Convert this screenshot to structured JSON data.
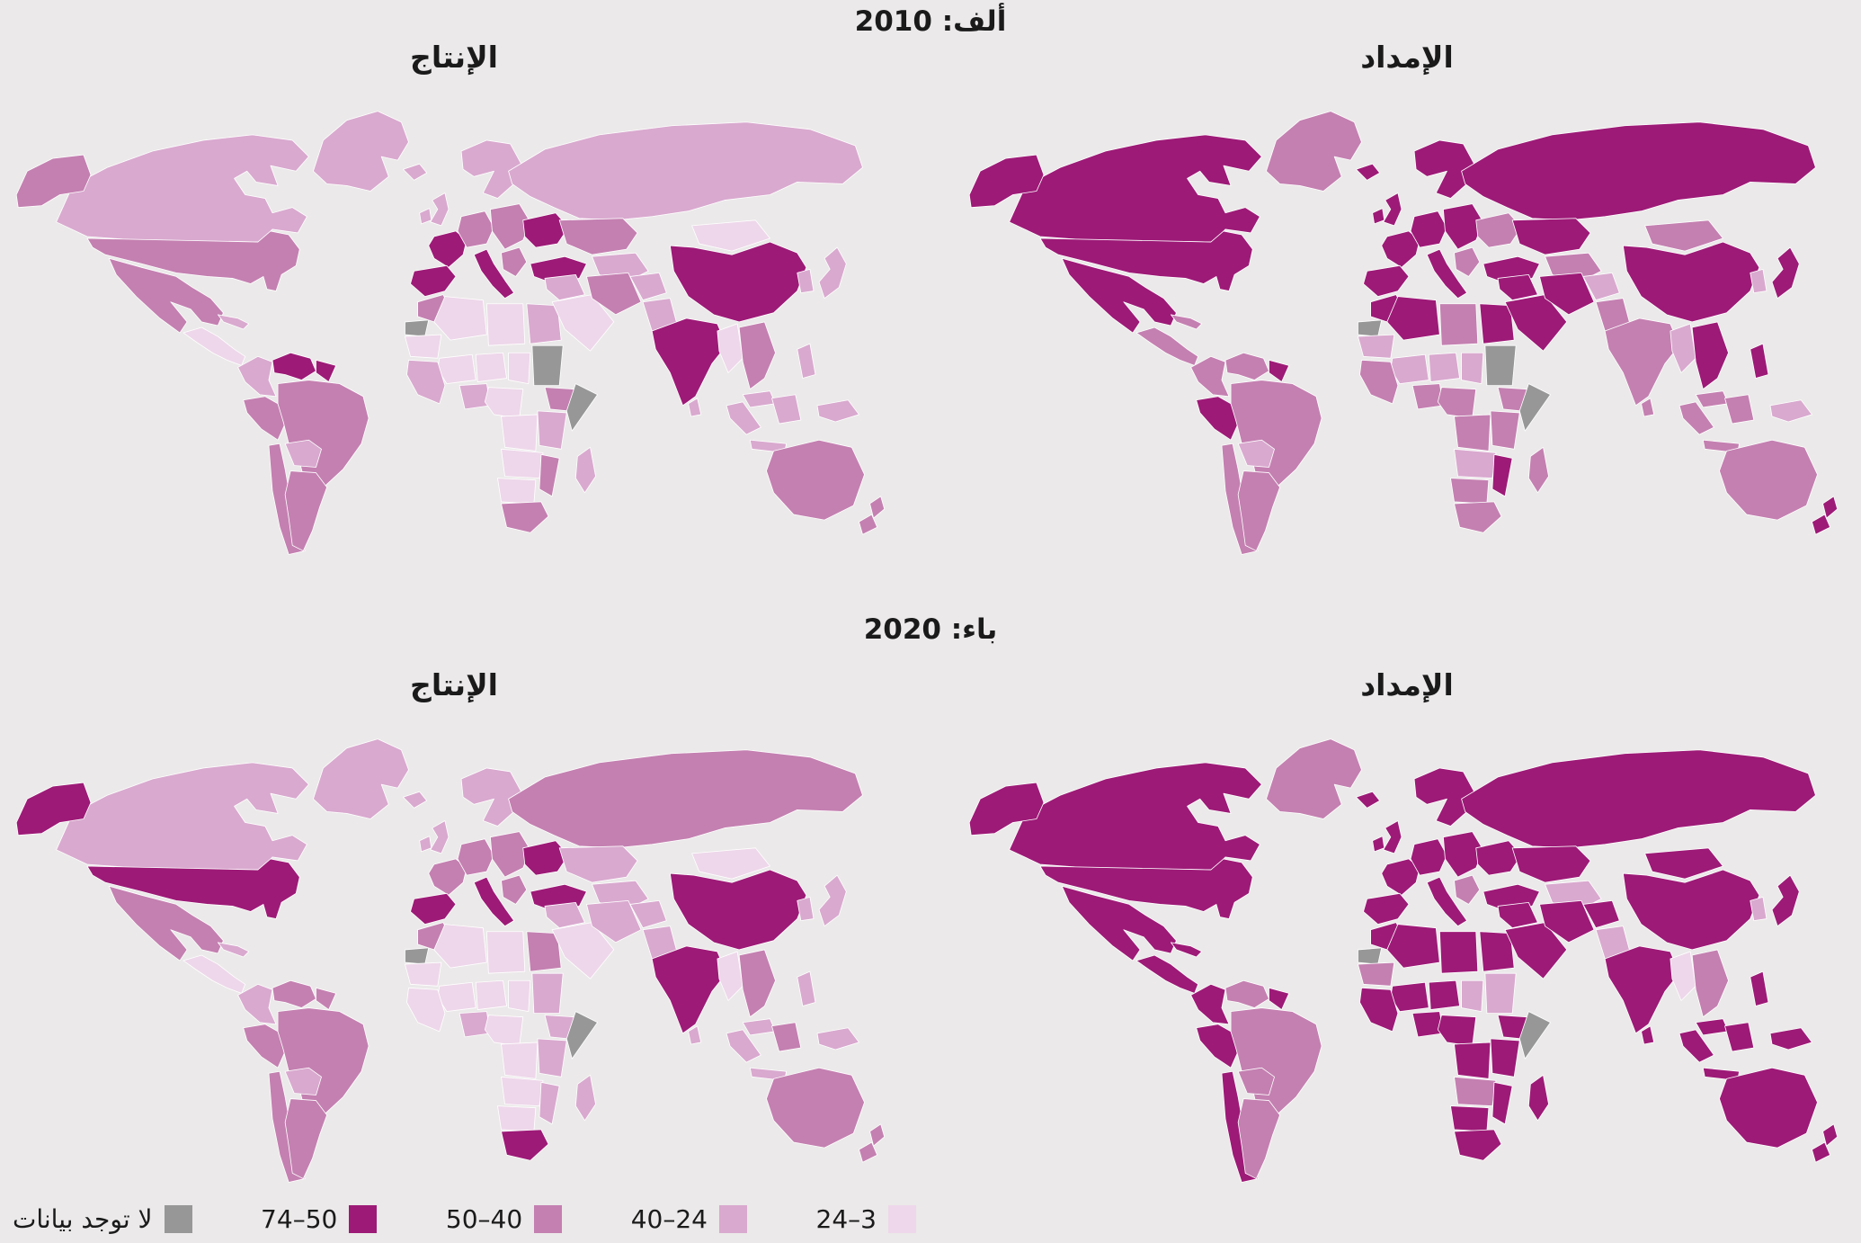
{
  "figure": {
    "panels": [
      {
        "id": "a",
        "header": "ألف: 2010",
        "maps": [
          {
            "title": "الإنتاج",
            "key": "prod2010"
          },
          {
            "title": "الإمداد",
            "key": "sup2010"
          }
        ]
      },
      {
        "id": "b",
        "header": "باء: 2020",
        "maps": [
          {
            "title": "الإنتاج",
            "key": "prod2020"
          },
          {
            "title": "الإمداد",
            "key": "sup2020"
          }
        ]
      }
    ]
  },
  "legend": {
    "items": [
      {
        "key": "c1",
        "label": "3–24"
      },
      {
        "key": "c2",
        "label": "24–40"
      },
      {
        "key": "c3",
        "label": "40–50"
      },
      {
        "key": "c4",
        "label": "50–74"
      },
      {
        "key": "nd",
        "label": "لا توجد بيانات"
      }
    ],
    "palette": {
      "c1": "#eed7ea",
      "c2": "#d9a9cf",
      "c3": "#c480b1",
      "c4": "#9d1a77",
      "nd": "#979797"
    }
  },
  "colors": {
    "background": "#ebe9e9",
    "border": "#ffffff",
    "text": "#1a1a1a"
  },
  "map_data": {
    "prod2010": {
      "greenland": "c2",
      "canada": "c2",
      "alaska": "c3",
      "usa": "c3",
      "mexico": "c3",
      "camerica": "c1",
      "cuba": "c2",
      "colombia": "c2",
      "venezuela": "c4",
      "guyanas": "c4",
      "peru": "c3",
      "brazil": "c3",
      "bolivia": "c2",
      "chile": "c3",
      "argentina": "c3",
      "iceland": "c2",
      "uk": "c2",
      "scandinavia": "c2",
      "france": "c4",
      "iberia": "c4",
      "centraleurope": "c3",
      "italy": "c4",
      "easteurope": "c3",
      "ukraine": "c4",
      "balkans": "c3",
      "turkey": "c4",
      "morocco": "c3",
      "wsahara": "nd",
      "mauritania": "c1",
      "algeria": "c1",
      "libya": "c1",
      "egypt": "c2",
      "mali": "c1",
      "niger": "c1",
      "chad": "c1",
      "sudan": "nd",
      "wafrica": "c2",
      "nigeria": "c2",
      "cafrica": "c1",
      "ethiopia": "c3",
      "somalia": "nd",
      "eafrica": "c2",
      "drc": "c1",
      "angola_zambia": "c1",
      "mozambique": "c3",
      "namibia_botswana": "c1",
      "southafrica": "c3",
      "madagascar": "c2",
      "russia": "c2",
      "kazakhstan": "c3",
      "centralasia": "c2",
      "iraq_levant": "c2",
      "saudi": "c1",
      "iran": "c3",
      "afghanistan": "c2",
      "pakistan": "c2",
      "india": "c4",
      "srilanka": "c2",
      "china": "c4",
      "mongolia": "c1",
      "korea": "c2",
      "japan": "c2",
      "myanmar": "c1",
      "indochina": "c3",
      "malaysia": "c2",
      "sumatra": "c2",
      "java": "c2",
      "borneo": "c2",
      "philippines": "c2",
      "png": "c2",
      "australia": "c3",
      "newzealand": "c3"
    },
    "sup2010": {
      "greenland": "c3",
      "canada": "c4",
      "alaska": "c4",
      "usa": "c4",
      "mexico": "c4",
      "camerica": "c3",
      "cuba": "c3",
      "colombia": "c3",
      "venezuela": "c3",
      "guyanas": "c4",
      "peru": "c4",
      "brazil": "c3",
      "bolivia": "c2",
      "chile": "c3",
      "argentina": "c3",
      "iceland": "c4",
      "uk": "c4",
      "scandinavia": "c4",
      "france": "c4",
      "iberia": "c4",
      "centraleurope": "c4",
      "italy": "c4",
      "easteurope": "c4",
      "ukraine": "c3",
      "balkans": "c3",
      "turkey": "c4",
      "morocco": "c4",
      "wsahara": "nd",
      "mauritania": "c2",
      "algeria": "c4",
      "libya": "c3",
      "egypt": "c4",
      "mali": "c2",
      "niger": "c2",
      "chad": "c2",
      "sudan": "nd",
      "wafrica": "c3",
      "nigeria": "c3",
      "cafrica": "c3",
      "ethiopia": "c3",
      "somalia": "nd",
      "eafrica": "c3",
      "drc": "c3",
      "angola_zambia": "c2",
      "mozambique": "c4",
      "namibia_botswana": "c3",
      "southafrica": "c3",
      "madagascar": "c3",
      "russia": "c4",
      "kazakhstan": "c4",
      "centralasia": "c3",
      "iraq_levant": "c4",
      "saudi": "c4",
      "iran": "c4",
      "afghanistan": "c2",
      "pakistan": "c3",
      "india": "c3",
      "srilanka": "c3",
      "china": "c4",
      "mongolia": "c3",
      "korea": "c2",
      "japan": "c4",
      "myanmar": "c2",
      "indochina": "c4",
      "malaysia": "c3",
      "sumatra": "c3",
      "java": "c3",
      "borneo": "c3",
      "philippines": "c4",
      "png": "c2",
      "australia": "c3",
      "newzealand": "c4"
    },
    "prod2020": {
      "greenland": "c2",
      "canada": "c2",
      "alaska": "c4",
      "usa": "c4",
      "mexico": "c3",
      "camerica": "c1",
      "cuba": "c2",
      "colombia": "c2",
      "venezuela": "c3",
      "guyanas": "c3",
      "peru": "c3",
      "brazil": "c3",
      "bolivia": "c2",
      "chile": "c3",
      "argentina": "c3",
      "iceland": "c2",
      "uk": "c2",
      "scandinavia": "c2",
      "france": "c3",
      "iberia": "c4",
      "centraleurope": "c3",
      "italy": "c4",
      "easteurope": "c3",
      "ukraine": "c4",
      "balkans": "c3",
      "turkey": "c4",
      "morocco": "c3",
      "wsahara": "nd",
      "mauritania": "c1",
      "algeria": "c1",
      "libya": "c1",
      "egypt": "c3",
      "mali": "c1",
      "niger": "c1",
      "chad": "c1",
      "sudan": "c2",
      "wafrica": "c1",
      "nigeria": "c2",
      "cafrica": "c1",
      "ethiopia": "c2",
      "somalia": "nd",
      "eafrica": "c2",
      "drc": "c1",
      "angola_zambia": "c1",
      "mozambique": "c2",
      "namibia_botswana": "c1",
      "southafrica": "c4",
      "madagascar": "c2",
      "russia": "c3",
      "kazakhstan": "c2",
      "centralasia": "c2",
      "iraq_levant": "c2",
      "saudi": "c1",
      "iran": "c2",
      "afghanistan": "c2",
      "pakistan": "c2",
      "india": "c4",
      "srilanka": "c2",
      "china": "c4",
      "mongolia": "c1",
      "korea": "c2",
      "japan": "c2",
      "myanmar": "c1",
      "indochina": "c3",
      "malaysia": "c2",
      "sumatra": "c2",
      "java": "c2",
      "borneo": "c3",
      "philippines": "c2",
      "png": "c2",
      "australia": "c3",
      "newzealand": "c3"
    },
    "sup2020": {
      "greenland": "c3",
      "canada": "c4",
      "alaska": "c4",
      "usa": "c4",
      "mexico": "c4",
      "camerica": "c4",
      "cuba": "c4",
      "colombia": "c4",
      "venezuela": "c3",
      "guyanas": "c4",
      "peru": "c4",
      "brazil": "c3",
      "bolivia": "c3",
      "chile": "c4",
      "argentina": "c3",
      "iceland": "c4",
      "uk": "c4",
      "scandinavia": "c4",
      "france": "c4",
      "iberia": "c4",
      "centraleurope": "c4",
      "italy": "c4",
      "easteurope": "c4",
      "ukraine": "c4",
      "balkans": "c3",
      "turkey": "c4",
      "morocco": "c4",
      "wsahara": "nd",
      "mauritania": "c3",
      "algeria": "c4",
      "libya": "c4",
      "egypt": "c4",
      "mali": "c4",
      "niger": "c4",
      "chad": "c2",
      "sudan": "c2",
      "wafrica": "c4",
      "nigeria": "c4",
      "cafrica": "c4",
      "ethiopia": "c4",
      "somalia": "nd",
      "eafrica": "c4",
      "drc": "c4",
      "angola_zambia": "c3",
      "mozambique": "c4",
      "namibia_botswana": "c4",
      "southafrica": "c4",
      "madagascar": "c4",
      "russia": "c4",
      "kazakhstan": "c4",
      "centralasia": "c2",
      "iraq_levant": "c4",
      "saudi": "c4",
      "iran": "c4",
      "afghanistan": "c4",
      "pakistan": "c2",
      "india": "c4",
      "srilanka": "c4",
      "china": "c4",
      "mongolia": "c4",
      "korea": "c2",
      "japan": "c4",
      "myanmar": "c1",
      "indochina": "c3",
      "malaysia": "c4",
      "sumatra": "c4",
      "java": "c4",
      "borneo": "c4",
      "philippines": "c4",
      "png": "c4",
      "australia": "c4",
      "newzealand": "c4"
    }
  }
}
